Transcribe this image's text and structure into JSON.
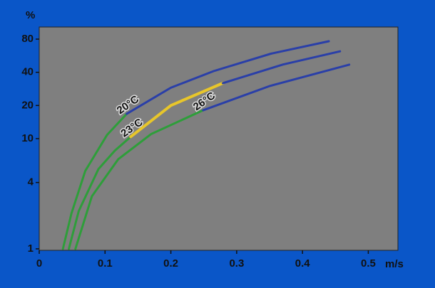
{
  "chart_data": {
    "type": "line",
    "y_unit": "%",
    "x_unit": "m/s",
    "xlim": [
      0,
      0.545
    ],
    "xticks": [
      0,
      0.1,
      0.2,
      0.3,
      0.4,
      0.5
    ],
    "ylim": [
      0.97,
      103
    ],
    "yticks": [
      1,
      4,
      10,
      20,
      40,
      80
    ],
    "log_y": true,
    "series": [
      {
        "name": "20°C",
        "segments": [
          {
            "color": "#2e9e3a",
            "x": [
              0.036,
              0.049,
              0.07,
              0.103,
              0.133
            ],
            "values": [
              1,
              2.1,
              5.1,
              10.8,
              16.8
            ]
          },
          {
            "color": "#2a3fa8",
            "x": [
              0.133,
              0.2,
              0.265,
              0.352,
              0.44
            ],
            "values": [
              16.8,
              29,
              41,
              59,
              76.5
            ]
          }
        ]
      },
      {
        "name": "23°C",
        "segments": [
          {
            "color": "#2e9e3a",
            "x": [
              0.045,
              0.06,
              0.09,
              0.115,
              0.139
            ],
            "values": [
              1,
              2.2,
              5.3,
              7.8,
              10.4
            ]
          },
          {
            "color": "#e8c62a",
            "x": [
              0.139,
              0.2,
              0.279
            ],
            "values": [
              10.4,
              20,
              31.9
            ]
          },
          {
            "color": "#2a3fa8",
            "x": [
              0.279,
              0.37,
              0.457
            ],
            "values": [
              31.9,
              47,
              62
            ]
          }
        ]
      },
      {
        "name": "26°C",
        "segments": [
          {
            "color": "#2e9e3a",
            "x": [
              0.055,
              0.08,
              0.12,
              0.17,
              0.249
            ],
            "values": [
              1,
              3,
              6.5,
              11,
              18.1
            ]
          },
          {
            "color": "#2a3fa8",
            "x": [
              0.249,
              0.35,
              0.471
            ],
            "values": [
              18.1,
              30,
              46.9
            ]
          }
        ]
      }
    ]
  }
}
